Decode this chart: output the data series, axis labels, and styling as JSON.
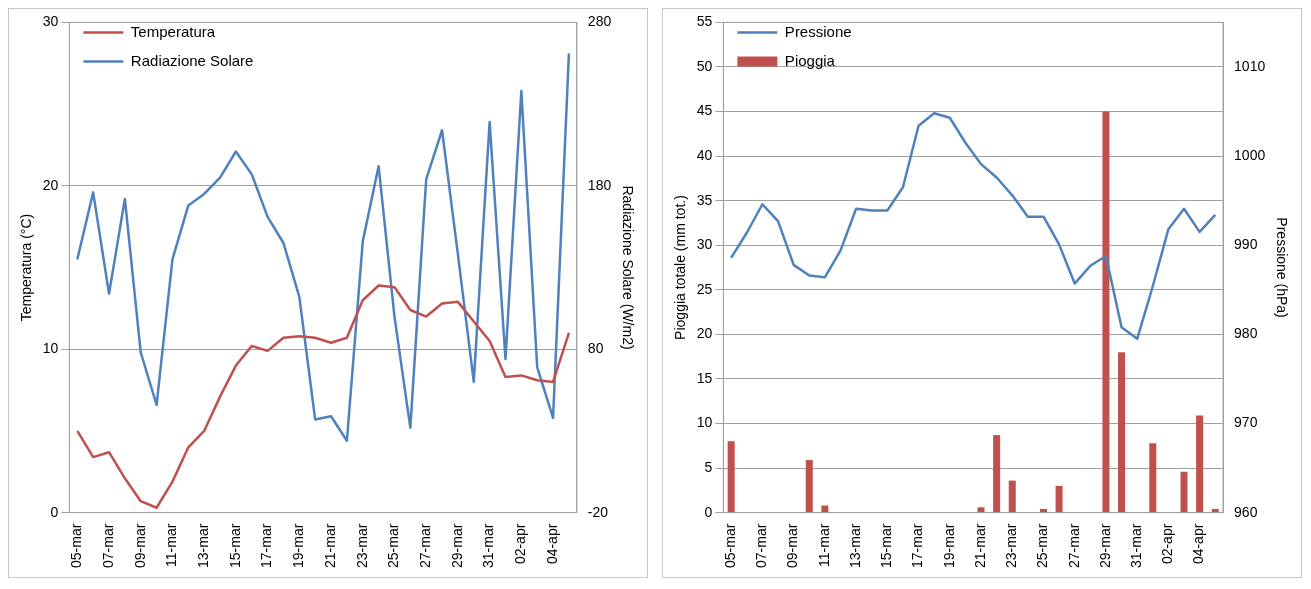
{
  "chart_data": [
    {
      "type": "line",
      "ylabel": "Temperatura (°C)",
      "y2label": "Radiazione Solare (W/m2)",
      "categories": [
        "05-mar",
        null,
        "07-mar",
        null,
        "09-mar",
        null,
        "11-mar",
        null,
        "13-mar",
        null,
        "15-mar",
        null,
        "17-mar",
        null,
        "19-mar",
        null,
        "21-mar",
        null,
        "23-mar",
        null,
        "25-mar",
        null,
        "27-mar",
        null,
        "29-mar",
        null,
        "31-mar",
        null,
        "02-apr",
        null,
        "04-apr",
        null
      ],
      "ylim": [
        0,
        30
      ],
      "yticks": [
        0,
        10,
        20,
        30
      ],
      "y2lim": [
        -20,
        280
      ],
      "y2ticks": [
        -20,
        80,
        180,
        280
      ],
      "grid": "y",
      "legend": "top left",
      "series": [
        {
          "name": "Temperatura",
          "color": "#c0504d",
          "values": [
            5.0,
            3.4,
            3.7,
            2.1,
            0.7,
            0.3,
            1.9,
            4.0,
            5.0,
            7.1,
            9.0,
            10.2,
            9.9,
            10.7,
            10.8,
            10.7,
            10.4,
            10.7,
            13.0,
            13.9,
            13.8,
            12.4,
            12.0,
            12.8,
            12.9,
            11.7,
            10.5,
            8.3,
            8.4,
            8.1,
            8.0,
            11.0
          ]
        },
        {
          "name": "Radiazione Solare",
          "color": "#4f81bd",
          "axis": "y2",
          "values": [
            135,
            176,
            114,
            172,
            78,
            46,
            135,
            168,
            175,
            185,
            201,
            187,
            161,
            145,
            112,
            37,
            39,
            24,
            146,
            192,
            100,
            32,
            184,
            214,
            138,
            60,
            219,
            74,
            238,
            69,
            38,
            261
          ]
        }
      ]
    },
    {
      "type": "bar",
      "ylabel": "Pioggia totale (mm tot.)",
      "y2label": "Pressione (hPa)",
      "categories": [
        "05-mar",
        null,
        "07-mar",
        null,
        "09-mar",
        null,
        "11-mar",
        null,
        "13-mar",
        null,
        "15-mar",
        null,
        "17-mar",
        null,
        "19-mar",
        null,
        "21-mar",
        null,
        "23-mar",
        null,
        "25-mar",
        null,
        "27-mar",
        null,
        "29-mar",
        null,
        "31-mar",
        null,
        "02-apr",
        null,
        "04-apr",
        null
      ],
      "ylim": [
        0,
        55
      ],
      "yticks": [
        0,
        5,
        10,
        15,
        20,
        25,
        30,
        35,
        40,
        45,
        50,
        55
      ],
      "y2lim": [
        960,
        1015
      ],
      "y2ticks": [
        960,
        970,
        980,
        990,
        1000,
        1010
      ],
      "grid": "y",
      "legend": "top left",
      "series": [
        {
          "name": "Pioggia",
          "color": "#c0504d",
          "values": [
            8,
            0,
            0,
            0,
            0,
            5.9,
            0.8,
            0,
            0,
            0,
            0,
            0,
            0,
            0,
            0,
            0,
            0.6,
            8.7,
            3.6,
            0,
            0.4,
            3.0,
            0,
            0,
            45,
            18,
            0,
            7.8,
            0,
            4.6,
            10.9,
            0.4
          ]
        },
        {
          "name": "Pressione",
          "type": "line",
          "color": "#4f81bd",
          "axis": "y2",
          "values": [
            988.6,
            991.4,
            994.6,
            992.7,
            987.8,
            986.6,
            986.4,
            989.4,
            994.1,
            993.9,
            993.9,
            996.5,
            1003.4,
            1004.8,
            1004.3,
            1001.5,
            999.1,
            997.6,
            995.6,
            993.2,
            993.2,
            990.1,
            985.7,
            987.7,
            988.8,
            980.8,
            979.5,
            985.4,
            991.8,
            994.1,
            991.5,
            993.4
          ]
        }
      ]
    }
  ]
}
